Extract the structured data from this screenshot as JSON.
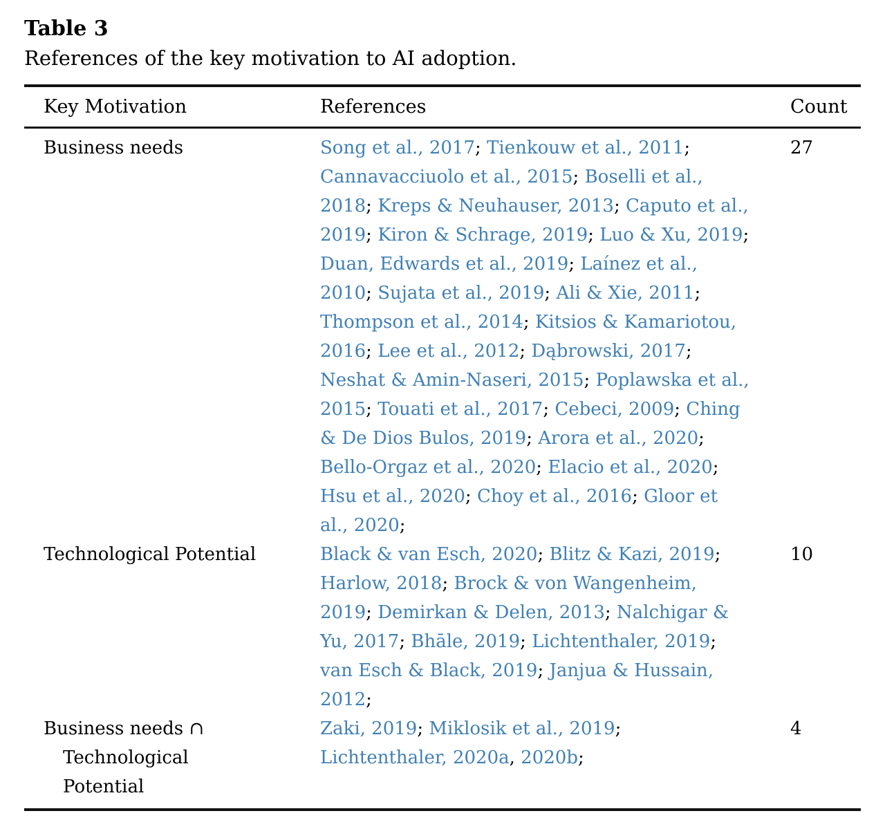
{
  "page": {
    "title": "Table 3",
    "caption": "References of the key motivation to AI adoption."
  },
  "table": {
    "columns": [
      "Key Motivation",
      "References",
      "Count"
    ],
    "link_color": "#4180b4",
    "rows": [
      {
        "motivation_lines": [
          "Business needs"
        ],
        "count": "27",
        "references": [
          {
            "text": "Song et al., 2017",
            "sep": "; "
          },
          {
            "text": "Tienkouw et al., 2011",
            "sep": "; "
          },
          {
            "text": "Cannavacciuolo et al., 2015",
            "sep": "; "
          },
          {
            "text": "Boselli et al., 2018",
            "sep": "; "
          },
          {
            "text": "Kreps & Neuhauser, 2013",
            "sep": "; "
          },
          {
            "text": "Caputo et al., 2019",
            "sep": "; "
          },
          {
            "text": "Kiron & Schrage, 2019",
            "sep": "; "
          },
          {
            "text": "Luo & Xu, 2019",
            "sep": "; "
          },
          {
            "text": "Duan, Edwards et al., 2019",
            "sep": "; "
          },
          {
            "text": "Laínez et al., 2010",
            "sep": "; "
          },
          {
            "text": "Sujata et al., 2019",
            "sep": "; "
          },
          {
            "text": "Ali & Xie, 2011",
            "sep": "; "
          },
          {
            "text": "Thompson et al., 2014",
            "sep": "; "
          },
          {
            "text": "Kitsios & Kamariotou, 2016",
            "sep": "; "
          },
          {
            "text": "Lee et al., 2012",
            "sep": "; "
          },
          {
            "text": "Dąbrowski, 2017",
            "sep": "; "
          },
          {
            "text": "Neshat & Amin-Naseri, 2015",
            "sep": "; "
          },
          {
            "text": "Poplawska et al., 2015",
            "sep": "; "
          },
          {
            "text": "Touati et al., 2017",
            "sep": "; "
          },
          {
            "text": "Cebeci, 2009",
            "sep": "; "
          },
          {
            "text": "Ching & De Dios Bulos, 2019",
            "sep": "; "
          },
          {
            "text": "Arora et al., 2020",
            "sep": "; "
          },
          {
            "text": "Bello-Orgaz et al., 2020",
            "sep": "; "
          },
          {
            "text": "Elacio et al., 2020",
            "sep": "; "
          },
          {
            "text": "Hsu et al., 2020",
            "sep": "; "
          },
          {
            "text": "Choy et al., 2016",
            "sep": "; "
          },
          {
            "text": "Gloor et al., 2020",
            "sep": ";"
          }
        ]
      },
      {
        "motivation_lines": [
          "Technological Potential"
        ],
        "count": "10",
        "references": [
          {
            "text": "Black & van Esch, 2020",
            "sep": "; "
          },
          {
            "text": "Blitz & Kazi, 2019",
            "sep": "; "
          },
          {
            "text": "Harlow, 2018",
            "sep": "; "
          },
          {
            "text": "Brock & von Wangenheim, 2019",
            "sep": "; "
          },
          {
            "text": "Demirkan & Delen, 2013",
            "sep": "; "
          },
          {
            "text": "Nalchigar & Yu, 2017",
            "sep": "; "
          },
          {
            "text": "Bhāle, 2019",
            "sep": "; "
          },
          {
            "text": "Lichtenthaler, 2019",
            "sep": "; "
          },
          {
            "text": "van Esch & Black, 2019",
            "sep": "; "
          },
          {
            "text": "Janjua & Hussain, 2012",
            "sep": ";"
          }
        ]
      },
      {
        "motivation_lines": [
          "Business needs ∩",
          "Technological",
          "Potential"
        ],
        "count": "4",
        "references": [
          {
            "text": "Zaki, 2019",
            "sep": "; "
          },
          {
            "text": "Miklosik et al., 2019",
            "sep": "; "
          },
          {
            "text": "Lichtenthaler, 2020a",
            "sep": ", "
          },
          {
            "text": "2020b",
            "sep": ";"
          }
        ]
      }
    ]
  }
}
